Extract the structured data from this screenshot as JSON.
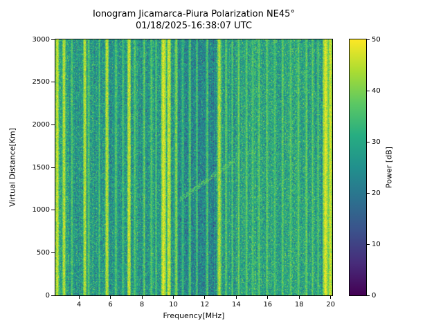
{
  "title": {
    "line1": "Ionogram Jicamarca-Piura Polarization NE45°",
    "line2": "01/18/2025-16:38:07 UTC"
  },
  "chart_data": {
    "type": "heatmap",
    "title": "Ionogram Jicamarca-Piura Polarization NE45°",
    "subtitle": "01/18/2025-16:38:07 UTC",
    "xlabel": "Frequency[MHz]",
    "ylabel": "Virtual Distance[Km]",
    "colorbar_label": "Power [dB]",
    "xlim": [
      2.5,
      20.1
    ],
    "ylim": [
      0,
      3000
    ],
    "clim": [
      0,
      50
    ],
    "x_ticks": [
      4,
      6,
      8,
      10,
      12,
      14,
      16,
      18,
      20
    ],
    "y_ticks": [
      0,
      500,
      1000,
      1500,
      2000,
      2500,
      3000
    ],
    "colorbar_ticks": [
      0,
      10,
      20,
      30,
      40,
      50
    ],
    "colormap": "viridis",
    "colormap_stops": [
      {
        "pos": 0.0,
        "rgb": [
          68,
          1,
          84
        ]
      },
      {
        "pos": 0.125,
        "rgb": [
          71,
          44,
          122
        ]
      },
      {
        "pos": 0.25,
        "rgb": [
          59,
          81,
          139
        ]
      },
      {
        "pos": 0.375,
        "rgb": [
          44,
          113,
          142
        ]
      },
      {
        "pos": 0.5,
        "rgb": [
          33,
          144,
          141
        ]
      },
      {
        "pos": 0.625,
        "rgb": [
          39,
          173,
          129
        ]
      },
      {
        "pos": 0.75,
        "rgb": [
          92,
          200,
          99
        ]
      },
      {
        "pos": 0.875,
        "rgb": [
          170,
          220,
          50
        ]
      },
      {
        "pos": 1.0,
        "rgb": [
          253,
          231,
          37
        ]
      }
    ],
    "background": {
      "mean": 27,
      "sigma": 5.5
    },
    "regions": [
      {
        "f0": 2.5,
        "f1": 3.4,
        "delta": 2.5
      },
      {
        "f0": 10.25,
        "f1": 12.7,
        "delta": -3.5
      },
      {
        "f0": 13.9,
        "f1": 19.4,
        "delta": 1.5
      }
    ],
    "rfi_stripes": [
      {
        "f": 2.62,
        "width": 0.12,
        "power": 48
      },
      {
        "f": 3.05,
        "width": 0.1,
        "power": 47
      },
      {
        "f": 3.55,
        "width": 0.08,
        "power": 38
      },
      {
        "f": 4.38,
        "width": 0.1,
        "power": 47
      },
      {
        "f": 4.62,
        "width": 0.08,
        "power": 39
      },
      {
        "f": 5.3,
        "width": 0.06,
        "power": 37
      },
      {
        "f": 5.78,
        "width": 0.12,
        "power": 47
      },
      {
        "f": 6.35,
        "width": 0.08,
        "power": 38
      },
      {
        "f": 6.8,
        "width": 0.06,
        "power": 37
      },
      {
        "f": 7.18,
        "width": 0.14,
        "power": 48
      },
      {
        "f": 7.55,
        "width": 0.08,
        "power": 38
      },
      {
        "f": 8.15,
        "width": 0.08,
        "power": 39
      },
      {
        "f": 8.6,
        "width": 0.08,
        "power": 38
      },
      {
        "f": 8.9,
        "width": 0.06,
        "power": 37
      },
      {
        "f": 9.38,
        "width": 0.22,
        "power": 49
      },
      {
        "f": 9.72,
        "width": 0.14,
        "power": 48
      },
      {
        "f": 10.18,
        "width": 0.1,
        "power": 42
      },
      {
        "f": 10.6,
        "width": 0.06,
        "power": 36
      },
      {
        "f": 11.05,
        "width": 0.08,
        "power": 39
      },
      {
        "f": 11.5,
        "width": 0.06,
        "power": 37
      },
      {
        "f": 12.15,
        "width": 0.08,
        "power": 38
      },
      {
        "f": 12.92,
        "width": 0.16,
        "power": 46
      },
      {
        "f": 13.35,
        "width": 0.08,
        "power": 39
      },
      {
        "f": 13.75,
        "width": 0.06,
        "power": 38
      },
      {
        "f": 14.15,
        "width": 0.08,
        "power": 40
      },
      {
        "f": 14.65,
        "width": 0.08,
        "power": 39
      },
      {
        "f": 15.05,
        "width": 0.06,
        "power": 38
      },
      {
        "f": 15.45,
        "width": 0.08,
        "power": 39
      },
      {
        "f": 15.95,
        "width": 0.08,
        "power": 39
      },
      {
        "f": 16.45,
        "width": 0.08,
        "power": 38
      },
      {
        "f": 16.95,
        "width": 0.08,
        "power": 39
      },
      {
        "f": 17.45,
        "width": 0.08,
        "power": 38
      },
      {
        "f": 17.95,
        "width": 0.08,
        "power": 39
      },
      {
        "f": 18.45,
        "width": 0.08,
        "power": 39
      },
      {
        "f": 18.85,
        "width": 0.08,
        "power": 38
      },
      {
        "f": 19.2,
        "width": 0.06,
        "power": 37
      },
      {
        "f": 19.68,
        "width": 0.25,
        "power": 49
      },
      {
        "f": 19.98,
        "width": 0.15,
        "power": 48
      }
    ],
    "echo_trace": {
      "f0": 10.4,
      "f1": 14.2,
      "d0": 1120,
      "d1": 1620,
      "power": 37,
      "thickness_km": 60
    }
  }
}
